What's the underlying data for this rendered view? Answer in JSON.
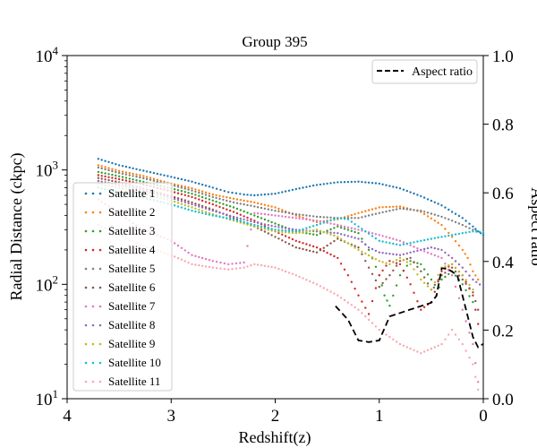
{
  "chart_data": {
    "type": "scatter",
    "title": "Group 395",
    "xlabel": "Redshift(z)",
    "ylabel": "Radial Distance (ckpc)",
    "y2label": "Aspect ratio",
    "xlim": [
      4,
      0
    ],
    "ylim": [
      10,
      10000
    ],
    "yscale": "log",
    "y2lim": [
      0,
      1
    ],
    "x_ticks": [
      4,
      3,
      2,
      1,
      0
    ],
    "x_tick_labels": [
      "4",
      "3",
      "2",
      "1",
      "0"
    ],
    "y_ticks": [
      10,
      100,
      1000,
      10000
    ],
    "y_tick_labels": [
      "10",
      "10",
      "10",
      "10"
    ],
    "y_tick_exponents": [
      "1",
      "2",
      "3",
      "4"
    ],
    "y2_ticks": [
      0.0,
      0.2,
      0.4,
      0.6,
      0.8,
      1.0
    ],
    "y2_tick_labels": [
      "0.0",
      "0.2",
      "0.4",
      "0.6",
      "0.8",
      "1.0"
    ],
    "legend_left_position": "lower-left",
    "legend_right_position": "upper-right",
    "series": [
      {
        "name": "Satellite 1",
        "color": "#1f77b4",
        "points": [
          [
            3.7,
            1250
          ],
          [
            3.5,
            1100
          ],
          [
            3.3,
            1000
          ],
          [
            3.0,
            870
          ],
          [
            2.8,
            790
          ],
          [
            2.6,
            700
          ],
          [
            2.45,
            640
          ],
          [
            2.3,
            610
          ],
          [
            2.2,
            600
          ],
          [
            2.0,
            620
          ],
          [
            1.8,
            680
          ],
          [
            1.6,
            740
          ],
          [
            1.4,
            780
          ],
          [
            1.2,
            790
          ],
          [
            1.0,
            760
          ],
          [
            0.8,
            690
          ],
          [
            0.6,
            590
          ],
          [
            0.4,
            490
          ],
          [
            0.3,
            430
          ],
          [
            0.2,
            380
          ],
          [
            0.1,
            320
          ],
          [
            0.05,
            290
          ],
          [
            0.0,
            270
          ]
        ]
      },
      {
        "name": "Satellite 2",
        "color": "#ff7f0e",
        "points": [
          [
            3.7,
            1100
          ],
          [
            3.5,
            980
          ],
          [
            3.3,
            900
          ],
          [
            3.0,
            760
          ],
          [
            2.8,
            690
          ],
          [
            2.6,
            610
          ],
          [
            2.4,
            560
          ],
          [
            2.2,
            520
          ],
          [
            2.0,
            470
          ],
          [
            1.8,
            400
          ],
          [
            1.6,
            350
          ],
          [
            1.4,
            370
          ],
          [
            1.2,
            420
          ],
          [
            1.0,
            470
          ],
          [
            0.8,
            480
          ],
          [
            0.6,
            430
          ],
          [
            0.4,
            330
          ],
          [
            0.3,
            260
          ],
          [
            0.2,
            200
          ],
          [
            0.15,
            170
          ],
          [
            0.1,
            130
          ],
          [
            0.05,
            110
          ]
        ]
      },
      {
        "name": "Satellite 3",
        "color": "#2ca02c",
        "points": [
          [
            3.7,
            960
          ],
          [
            3.5,
            880
          ],
          [
            3.3,
            800
          ],
          [
            3.0,
            690
          ],
          [
            2.8,
            620
          ],
          [
            2.6,
            540
          ],
          [
            2.4,
            470
          ],
          [
            2.2,
            400
          ],
          [
            2.0,
            340
          ],
          [
            1.8,
            290
          ],
          [
            1.6,
            270
          ],
          [
            1.4,
            320
          ],
          [
            1.2,
            280
          ],
          [
            1.1,
            200
          ],
          [
            1.0,
            120
          ],
          [
            0.95,
            80
          ],
          [
            0.9,
            65
          ],
          [
            0.8,
            120
          ],
          [
            0.7,
            160
          ],
          [
            0.6,
            150
          ],
          [
            0.5,
            110
          ],
          [
            0.45,
            80
          ],
          [
            0.4,
            110
          ],
          [
            0.3,
            130
          ],
          [
            0.2,
            100
          ],
          [
            0.1,
            70
          ]
        ]
      },
      {
        "name": "Satellite 4",
        "color": "#d62728",
        "points": [
          [
            3.7,
            900
          ],
          [
            3.5,
            830
          ],
          [
            3.3,
            760
          ],
          [
            3.0,
            650
          ],
          [
            2.8,
            580
          ],
          [
            2.6,
            500
          ],
          [
            2.4,
            430
          ],
          [
            2.2,
            360
          ],
          [
            2.0,
            290
          ],
          [
            1.8,
            240
          ],
          [
            1.6,
            210
          ],
          [
            1.4,
            170
          ],
          [
            1.3,
            120
          ],
          [
            1.2,
            80
          ],
          [
            1.1,
            55
          ],
          [
            1.0,
            120
          ],
          [
            0.9,
            160
          ],
          [
            0.8,
            150
          ],
          [
            0.7,
            100
          ],
          [
            0.6,
            60
          ],
          [
            0.5,
            70
          ],
          [
            0.4,
            130
          ],
          [
            0.3,
            150
          ],
          [
            0.2,
            120
          ],
          [
            0.1,
            80
          ],
          [
            0.05,
            45
          ]
        ]
      },
      {
        "name": "Satellite 5",
        "color": "#7f7f7f",
        "points": [
          [
            3.7,
            1050
          ],
          [
            3.5,
            940
          ],
          [
            3.3,
            860
          ],
          [
            3.0,
            740
          ],
          [
            2.8,
            660
          ],
          [
            2.6,
            580
          ],
          [
            2.4,
            520
          ],
          [
            2.2,
            480
          ],
          [
            2.0,
            440
          ],
          [
            1.8,
            410
          ],
          [
            1.6,
            390
          ],
          [
            1.4,
            380
          ],
          [
            1.2,
            380
          ],
          [
            1.0,
            420
          ],
          [
            0.8,
            460
          ],
          [
            0.6,
            440
          ],
          [
            0.4,
            390
          ],
          [
            0.3,
            360
          ],
          [
            0.2,
            330
          ],
          [
            0.1,
            300
          ],
          [
            0.0,
            280
          ]
        ]
      },
      {
        "name": "Satellite 6",
        "color": "#8c564b",
        "points": [
          [
            3.7,
            850
          ],
          [
            3.5,
            780
          ],
          [
            3.3,
            700
          ],
          [
            3.0,
            590
          ],
          [
            2.8,
            520
          ],
          [
            2.6,
            450
          ],
          [
            2.4,
            380
          ],
          [
            2.2,
            320
          ],
          [
            2.0,
            260
          ],
          [
            1.8,
            210
          ],
          [
            1.6,
            190
          ],
          [
            1.4,
            250
          ],
          [
            1.2,
            210
          ],
          [
            1.1,
            140
          ],
          [
            1.0,
            95
          ],
          [
            0.9,
            120
          ],
          [
            0.8,
            160
          ],
          [
            0.7,
            170
          ],
          [
            0.6,
            130
          ],
          [
            0.5,
            90
          ],
          [
            0.4,
            120
          ],
          [
            0.3,
            140
          ],
          [
            0.2,
            110
          ],
          [
            0.1,
            85
          ],
          [
            0.05,
            60
          ]
        ]
      },
      {
        "name": "Satellite 7",
        "color": "#e377c2",
        "points": [
          [
            3.7,
            550
          ],
          [
            3.5,
            420
          ],
          [
            3.3,
            310
          ],
          [
            3.0,
            240
          ],
          [
            2.8,
            180
          ],
          [
            2.6,
            160
          ],
          [
            2.45,
            150
          ],
          [
            2.3,
            155
          ],
          [
            2.2,
            420
          ],
          [
            2.0,
            400
          ],
          [
            1.8,
            380
          ],
          [
            1.6,
            360
          ],
          [
            1.4,
            330
          ],
          [
            1.2,
            300
          ],
          [
            1.0,
            270
          ],
          [
            0.8,
            240
          ],
          [
            0.6,
            200
          ],
          [
            0.4,
            170
          ],
          [
            0.3,
            120
          ],
          [
            0.2,
            60
          ],
          [
            0.1,
            30
          ],
          [
            0.05,
            14
          ]
        ]
      },
      {
        "name": "Satellite 8",
        "color": "#9467bd",
        "points": [
          [
            3.7,
            800
          ],
          [
            3.5,
            740
          ],
          [
            3.3,
            670
          ],
          [
            3.0,
            570
          ],
          [
            2.8,
            500
          ],
          [
            2.6,
            440
          ],
          [
            2.4,
            390
          ],
          [
            2.2,
            350
          ],
          [
            2.0,
            320
          ],
          [
            1.8,
            300
          ],
          [
            1.6,
            290
          ],
          [
            1.4,
            280
          ],
          [
            1.2,
            250
          ],
          [
            1.1,
            210
          ],
          [
            1.0,
            190
          ],
          [
            0.8,
            180
          ],
          [
            0.6,
            200
          ],
          [
            0.5,
            210
          ],
          [
            0.4,
            200
          ],
          [
            0.3,
            170
          ],
          [
            0.2,
            140
          ],
          [
            0.1,
            110
          ],
          [
            0.0,
            95
          ]
        ]
      },
      {
        "name": "Satellite 9",
        "color": "#bcbd22",
        "points": [
          [
            3.7,
            760
          ],
          [
            3.5,
            700
          ],
          [
            3.3,
            630
          ],
          [
            3.0,
            540
          ],
          [
            2.8,
            470
          ],
          [
            2.6,
            410
          ],
          [
            2.4,
            360
          ],
          [
            2.2,
            320
          ],
          [
            2.0,
            290
          ],
          [
            1.8,
            280
          ],
          [
            1.6,
            300
          ],
          [
            1.4,
            260
          ],
          [
            1.2,
            200
          ],
          [
            1.0,
            160
          ],
          [
            0.9,
            150
          ],
          [
            0.8,
            170
          ],
          [
            0.7,
            150
          ],
          [
            0.6,
            110
          ],
          [
            0.5,
            90
          ],
          [
            0.4,
            140
          ],
          [
            0.3,
            150
          ],
          [
            0.2,
            120
          ],
          [
            0.1,
            90
          ]
        ]
      },
      {
        "name": "Satellite 10",
        "color": "#17becf",
        "points": [
          [
            3.7,
            700
          ],
          [
            3.5,
            640
          ],
          [
            3.3,
            580
          ],
          [
            3.0,
            500
          ],
          [
            2.8,
            440
          ],
          [
            2.6,
            400
          ],
          [
            2.4,
            370
          ],
          [
            2.2,
            330
          ],
          [
            2.0,
            300
          ],
          [
            1.8,
            290
          ],
          [
            1.6,
            330
          ],
          [
            1.4,
            380
          ],
          [
            1.3,
            370
          ],
          [
            1.2,
            320
          ],
          [
            1.0,
            240
          ],
          [
            0.8,
            220
          ],
          [
            0.6,
            240
          ],
          [
            0.4,
            260
          ],
          [
            0.2,
            280
          ],
          [
            0.1,
            290
          ],
          [
            0.0,
            285
          ]
        ]
      },
      {
        "name": "Satellite 11",
        "color": "#f7a8b0",
        "points": [
          [
            3.7,
            330
          ],
          [
            3.5,
            270
          ],
          [
            3.3,
            220
          ],
          [
            3.0,
            180
          ],
          [
            2.8,
            150
          ],
          [
            2.6,
            140
          ],
          [
            2.45,
            135
          ],
          [
            2.3,
            140
          ],
          [
            2.2,
            150
          ],
          [
            2.0,
            140
          ],
          [
            1.8,
            120
          ],
          [
            1.6,
            100
          ],
          [
            1.4,
            80
          ],
          [
            1.2,
            60
          ],
          [
            1.0,
            40
          ],
          [
            0.8,
            30
          ],
          [
            0.6,
            25
          ],
          [
            0.4,
            30
          ],
          [
            0.3,
            40
          ],
          [
            0.2,
            30
          ],
          [
            0.1,
            20
          ],
          [
            0.05,
            12
          ]
        ]
      }
    ],
    "aspect_ratio": {
      "name": "Aspect ratio",
      "color": "#000000",
      "style": "dashed",
      "points": [
        [
          1.42,
          0.27
        ],
        [
          1.3,
          0.23
        ],
        [
          1.2,
          0.17
        ],
        [
          1.1,
          0.165
        ],
        [
          1.0,
          0.17
        ],
        [
          0.9,
          0.24
        ],
        [
          0.8,
          0.25
        ],
        [
          0.7,
          0.26
        ],
        [
          0.6,
          0.27
        ],
        [
          0.5,
          0.28
        ],
        [
          0.45,
          0.3
        ],
        [
          0.4,
          0.38
        ],
        [
          0.35,
          0.38
        ],
        [
          0.3,
          0.37
        ],
        [
          0.25,
          0.36
        ],
        [
          0.2,
          0.3
        ],
        [
          0.15,
          0.24
        ],
        [
          0.1,
          0.18
        ],
        [
          0.05,
          0.15
        ],
        [
          0.0,
          0.16
        ]
      ]
    }
  }
}
